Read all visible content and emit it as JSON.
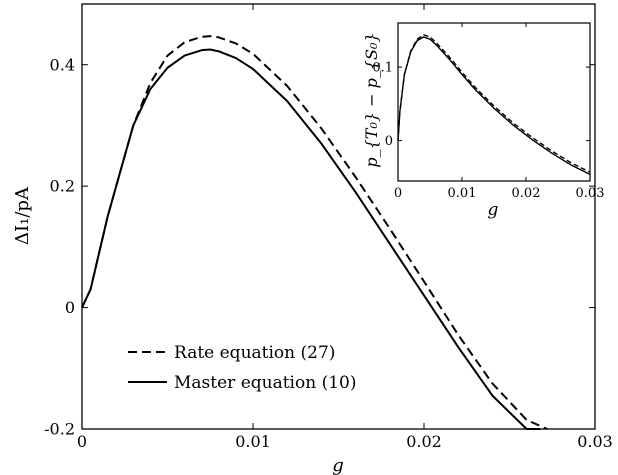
{
  "chart_data": [
    {
      "type": "line",
      "xlabel": "g",
      "ylabel": "ΔI₁/pA",
      "xlim": [
        0,
        0.03
      ],
      "ylim": [
        -0.2,
        0.5
      ],
      "x_ticks": [
        {
          "value": 0,
          "label": "0"
        },
        {
          "value": 0.01,
          "label": "0.01"
        },
        {
          "value": 0.02,
          "label": "0.02"
        },
        {
          "value": 0.03,
          "label": "0.03"
        }
      ],
      "y_ticks": [
        {
          "value": -0.2,
          "label": "-0.2"
        },
        {
          "value": 0,
          "label": "0"
        },
        {
          "value": 0.2,
          "label": "0.2"
        },
        {
          "value": 0.4,
          "label": "0.4"
        }
      ],
      "grid": false,
      "legend_position": "bottom-left",
      "series": [
        {
          "name": "Rate equation (27)",
          "style": "dashed",
          "color": "#000000",
          "x": [
            0,
            0.0005,
            0.001,
            0.0015,
            0.002,
            0.003,
            0.004,
            0.005,
            0.006,
            0.007,
            0.0075,
            0.008,
            0.009,
            0.01,
            0.012,
            0.014,
            0.016,
            0.018,
            0.02,
            0.022,
            0.024,
            0.026,
            0.0272
          ],
          "y": [
            0,
            0.03,
            0.09,
            0.15,
            0.2,
            0.3,
            0.37,
            0.415,
            0.437,
            0.446,
            0.447,
            0.445,
            0.435,
            0.418,
            0.365,
            0.295,
            0.215,
            0.13,
            0.043,
            -0.045,
            -0.125,
            -0.185,
            -0.205
          ]
        },
        {
          "name": "Master equation (10)",
          "style": "solid",
          "color": "#000000",
          "x": [
            0,
            0.0005,
            0.001,
            0.0015,
            0.002,
            0.003,
            0.004,
            0.005,
            0.006,
            0.007,
            0.0075,
            0.008,
            0.009,
            0.01,
            0.012,
            0.014,
            0.016,
            0.018,
            0.02,
            0.022,
            0.024,
            0.026,
            0.0268
          ],
          "y": [
            0,
            0.03,
            0.09,
            0.15,
            0.2,
            0.3,
            0.36,
            0.395,
            0.415,
            0.424,
            0.425,
            0.422,
            0.411,
            0.393,
            0.34,
            0.27,
            0.19,
            0.105,
            0.02,
            -0.065,
            -0.145,
            -0.2,
            -0.205
          ]
        }
      ]
    },
    {
      "type": "line",
      "xlabel": "g",
      "ylabel": "p_{T₀} − p_{S₀}",
      "xlim": [
        0,
        0.03
      ],
      "ylim": [
        -0.055,
        0.16
      ],
      "x_ticks": [
        {
          "value": 0,
          "label": "0"
        },
        {
          "value": 0.01,
          "label": "0.01"
        },
        {
          "value": 0.02,
          "label": "0.02"
        },
        {
          "value": 0.03,
          "label": "0.03"
        }
      ],
      "y_ticks": [
        {
          "value": 0,
          "label": "0"
        },
        {
          "value": 0.1,
          "label": "0.1"
        }
      ],
      "grid": false,
      "series": [
        {
          "style": "dashed",
          "color": "#000000",
          "x": [
            0,
            0.0003,
            0.001,
            0.002,
            0.003,
            0.004,
            0.005,
            0.006,
            0.008,
            0.01,
            0.012,
            0.015,
            0.018,
            0.021,
            0.024,
            0.027,
            0.03
          ],
          "y": [
            0,
            0.04,
            0.09,
            0.122,
            0.138,
            0.144,
            0.141,
            0.133,
            0.114,
            0.093,
            0.073,
            0.047,
            0.024,
            0.004,
            -0.014,
            -0.03,
            -0.043
          ]
        },
        {
          "style": "solid",
          "color": "#000000",
          "x": [
            0,
            0.0003,
            0.001,
            0.002,
            0.003,
            0.004,
            0.005,
            0.006,
            0.008,
            0.01,
            0.012,
            0.015,
            0.018,
            0.021,
            0.024,
            0.027,
            0.03
          ],
          "y": [
            0,
            0.04,
            0.09,
            0.121,
            0.136,
            0.141,
            0.138,
            0.13,
            0.111,
            0.09,
            0.07,
            0.044,
            0.021,
            0.001,
            -0.017,
            -0.033,
            -0.046
          ]
        }
      ]
    }
  ]
}
